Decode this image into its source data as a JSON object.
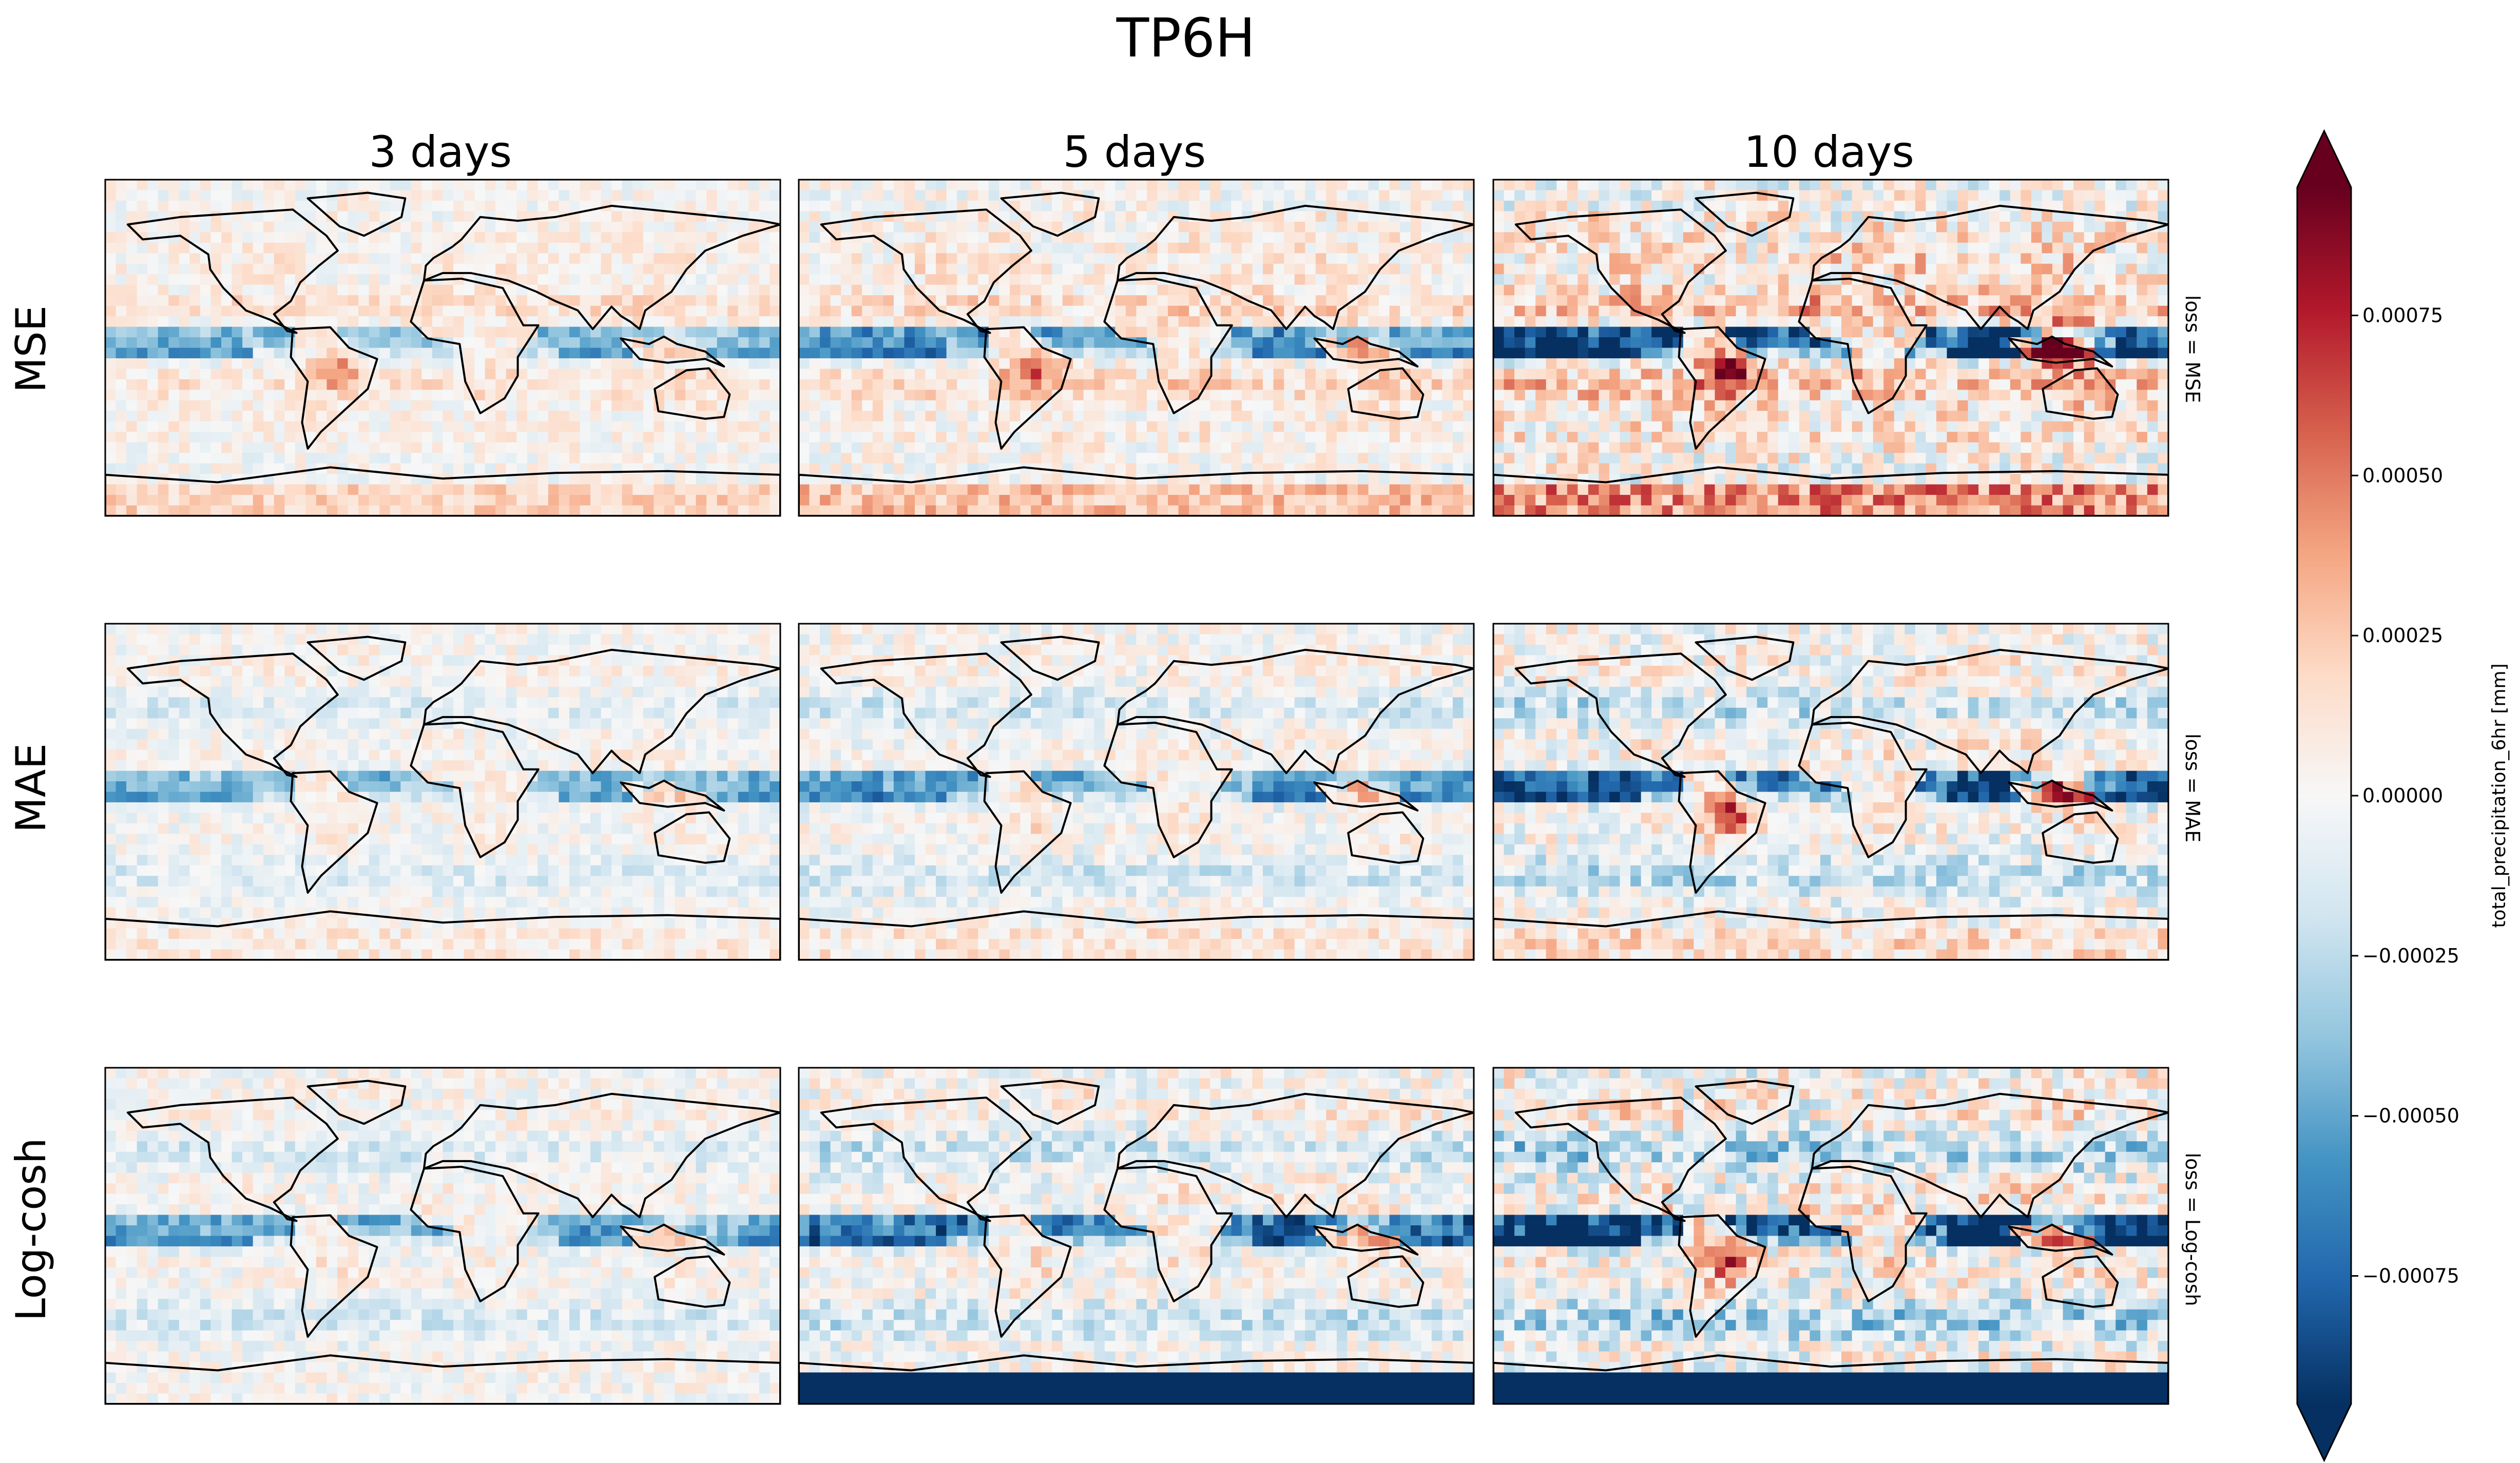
{
  "chart_data": {
    "type": "heatmap",
    "title": "TP6H",
    "columns": [
      "3 days",
      "5 days",
      "10 days"
    ],
    "rows": [
      {
        "label": "MSE",
        "facet_label": "loss = MSE"
      },
      {
        "label": "MAE",
        "facet_label": "loss = MAE"
      },
      {
        "label": "Log-cosh",
        "facet_label": "loss = Log-cosh"
      }
    ],
    "colorbar": {
      "label": "total_precipitation_6hr [mm]",
      "colormap": "RdBu_r",
      "vmin": -0.00095,
      "vmax": 0.00095,
      "extend": "both",
      "ticks": [
        0.00075,
        0.0005,
        0.00025,
        0.0,
        -0.00025,
        -0.0005,
        -0.00075
      ],
      "tick_labels": [
        "0.00075",
        "0.00050",
        "0.00025",
        "0.00000",
        "−0.00025",
        "−0.00050",
        "−0.00075"
      ]
    },
    "grid_size": [
      64,
      32
    ],
    "panel_intensity": [
      [
        1.0,
        1.3,
        2.1
      ],
      [
        1.0,
        1.2,
        1.7
      ],
      [
        1.1,
        1.5,
        2.2
      ]
    ],
    "colors": {
      "dark_blue": "#053061",
      "white": "#f7f7f7",
      "dark_red": "#67001f"
    }
  }
}
